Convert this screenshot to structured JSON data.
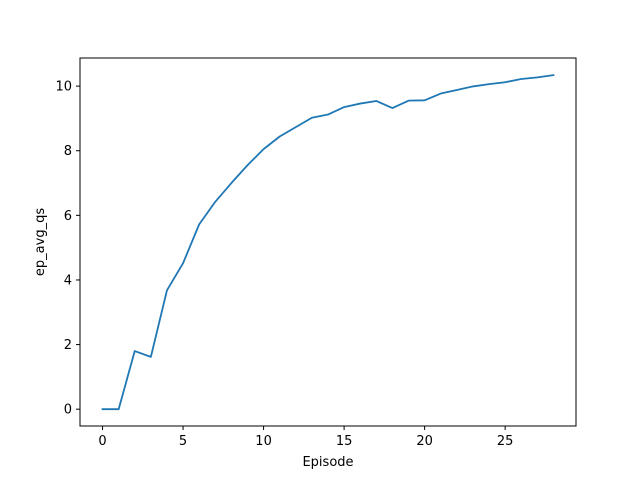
{
  "chart_data": {
    "type": "line",
    "title": "",
    "xlabel": "Episode",
    "ylabel": "ep_avg_qs",
    "xlim": [
      -1.4,
      29.4
    ],
    "ylim": [
      -0.52,
      10.87
    ],
    "xticks": [
      0,
      5,
      10,
      15,
      20,
      25
    ],
    "yticks": [
      0,
      2,
      4,
      6,
      8,
      10
    ],
    "grid": false,
    "legend": "none",
    "series": [
      {
        "color": "#1f77b4",
        "x": [
          0,
          1,
          2,
          3,
          4,
          5,
          6,
          7,
          8,
          9,
          10,
          11,
          12,
          13,
          14,
          15,
          16,
          17,
          18,
          19,
          20,
          21,
          22,
          23,
          24,
          25,
          26,
          27,
          28
        ],
        "y": [
          0.0,
          0.0,
          1.8,
          1.62,
          3.68,
          4.52,
          5.72,
          6.42,
          7.0,
          7.55,
          8.05,
          8.44,
          8.73,
          9.02,
          9.12,
          9.35,
          9.46,
          9.54,
          9.32,
          9.55,
          9.56,
          9.77,
          9.88,
          9.99,
          10.06,
          10.12,
          10.22,
          10.27,
          10.34
        ]
      }
    ]
  }
}
